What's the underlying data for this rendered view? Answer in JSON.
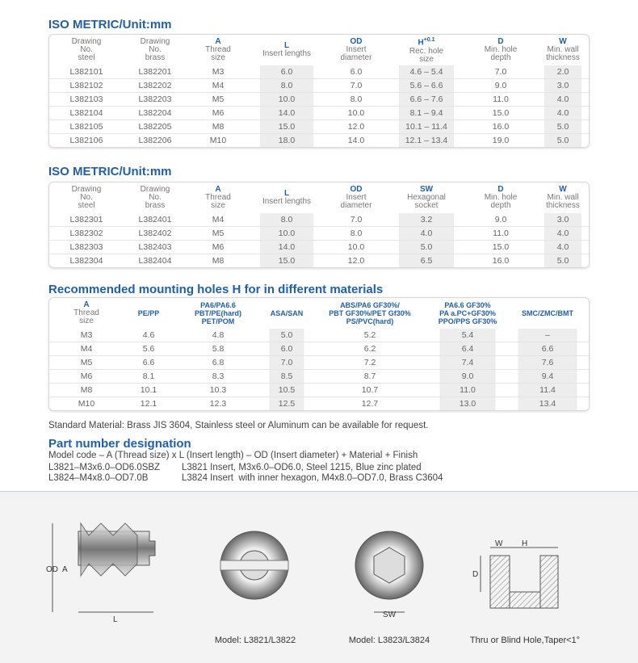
{
  "sections": [
    {
      "title": "ISO METRIC/Unit:mm",
      "headers": [
        {
          "label": [
            "Drawing",
            "No.",
            "steel"
          ]
        },
        {
          "label": [
            "Drawing",
            "No.",
            "brass"
          ]
        },
        {
          "code": "A",
          "label": [
            "Thread",
            "size"
          ]
        },
        {
          "code": "L",
          "label": [
            "Insert lengths"
          ]
        },
        {
          "code": "OD",
          "label": [
            "Insert",
            "diameter"
          ]
        },
        {
          "code": "H",
          "sup": "+0.1",
          "label": [
            "Rec. hole",
            "size"
          ]
        },
        {
          "code": "D",
          "label": [
            "Min. hole",
            "depth"
          ]
        },
        {
          "code": "W",
          "label": [
            "Min. wall",
            "thickness"
          ]
        }
      ],
      "rows": [
        [
          "L382101",
          "L382201",
          "M3",
          "6.0",
          "6.0",
          "4.6 – 5.4",
          "7.0",
          "2.0"
        ],
        [
          "L382102",
          "L382202",
          "M4",
          "8.0",
          "7.0",
          "5.6 – 6.6",
          "9.0",
          "3.0"
        ],
        [
          "L382103",
          "L382203",
          "M5",
          "10.0",
          "8.0",
          "6.6 – 7.6",
          "11.0",
          "4.0"
        ],
        [
          "L382104",
          "L382204",
          "M6",
          "14.0",
          "10.0",
          "8.1 – 9.4",
          "15.0",
          "4.0"
        ],
        [
          "L382105",
          "L382205",
          "M8",
          "15.0",
          "12.0",
          "10.1 – 11.4",
          "16.0",
          "5.0"
        ],
        [
          "L382106",
          "L382206",
          "M10",
          "18.0",
          "14.0",
          "12.1 – 13.4",
          "19.0",
          "5.0"
        ]
      ]
    },
    {
      "title": "ISO METRIC/Unit:mm",
      "headers": [
        {
          "label": [
            "Drawing",
            "No.",
            "steel"
          ]
        },
        {
          "label": [
            "Drawing",
            "No.",
            "brass"
          ]
        },
        {
          "code": "A",
          "label": [
            "Thread",
            "size"
          ]
        },
        {
          "code": "L",
          "label": [
            "Insert lengths"
          ]
        },
        {
          "code": "OD",
          "label": [
            "Insert",
            "diameter"
          ]
        },
        {
          "code": "SW",
          "label": [
            "Hexagonal",
            "socket"
          ]
        },
        {
          "code": "D",
          "label": [
            "Min. hole",
            "depth"
          ]
        },
        {
          "code": "W",
          "label": [
            "Min. wall",
            "thickness"
          ]
        }
      ],
      "rows": [
        [
          "L382301",
          "L382401",
          "M4",
          "8.0",
          "7.0",
          "3.2",
          "9.0",
          "3.0"
        ],
        [
          "L382302",
          "L382402",
          "M5",
          "10.0",
          "8.0",
          "4.0",
          "11.0",
          "4.0"
        ],
        [
          "L382303",
          "L382403",
          "M6",
          "14.0",
          "10.0",
          "5.0",
          "15.0",
          "4.0"
        ],
        [
          "L382304",
          "L382404",
          "M8",
          "15.0",
          "12.0",
          "6.5",
          "16.0",
          "5.0"
        ]
      ]
    },
    {
      "title": "Recommended mounting holes H for in different materials",
      "headers": [
        {
          "code": "A",
          "label": [
            "Thread",
            "size"
          ]
        },
        {
          "blue": [
            "PE/PP"
          ]
        },
        {
          "blue": [
            "PA6/PA6.6",
            "PBT/PE(hard)",
            "PET/POM"
          ]
        },
        {
          "blue": [
            "ASA/SAN"
          ]
        },
        {
          "blue": [
            "ABS/PA6 GF30%/",
            "PBT GF30%/PET Gf30%",
            "PS/PVC(hard)"
          ]
        },
        {
          "blue": [
            "PA6.6 GF30%",
            "PA a.PC+GF30%",
            "PPO/PPS GF30%"
          ]
        },
        {
          "blue": [
            "SMC/ZMC/BMT"
          ]
        }
      ],
      "rows": [
        [
          "M3",
          "4.6",
          "4.8",
          "5.0",
          "5.2",
          "5.4",
          "–"
        ],
        [
          "M4",
          "5.6",
          "5.8",
          "6.0",
          "6.2",
          "6.4",
          "6.6"
        ],
        [
          "M5",
          "6.6",
          "6.8",
          "7.0",
          "7.2",
          "7.4",
          "7.6"
        ],
        [
          "M6",
          "8.1",
          "8.3",
          "8.5",
          "8.7",
          "9.0",
          "9.4"
        ],
        [
          "M8",
          "10.1",
          "10.3",
          "10.5",
          "10.7",
          "11.0",
          "11.4"
        ],
        [
          "M10",
          "12.1",
          "12.3",
          "12.5",
          "12.7",
          "13.0",
          "13.4"
        ]
      ]
    }
  ],
  "note": "Standard Material: Brass JIS 3604, Stainless steel or Aluminum can be available for request.",
  "designation": {
    "title": "Part number designation",
    "model_code": "Model code – A (Thread size) x L (Insert length) – OD (Insert diameter) + Material + Finish",
    "examples": [
      [
        "L3821–M3x6.0–OD6.0SBZ",
        "L3821 Insert, M3x6.0–OD6.0, Steel 1215, Blue zinc plated"
      ],
      [
        "L3824–M4x8.0–OD7.0B",
        "L3824 Insert  with inner hexagon, M4x8.0–OD7.0, Brass C3604"
      ]
    ]
  },
  "drawings": {
    "labels": {
      "od": "OD",
      "a": "A",
      "l": "L",
      "sw": "SW",
      "w": "W",
      "h": "H",
      "d": "D"
    },
    "captions": [
      "Model:  L3821/L3822",
      "Model:  L3823/L3824",
      "Thru  or  Blind Hole,Taper<1°"
    ]
  }
}
